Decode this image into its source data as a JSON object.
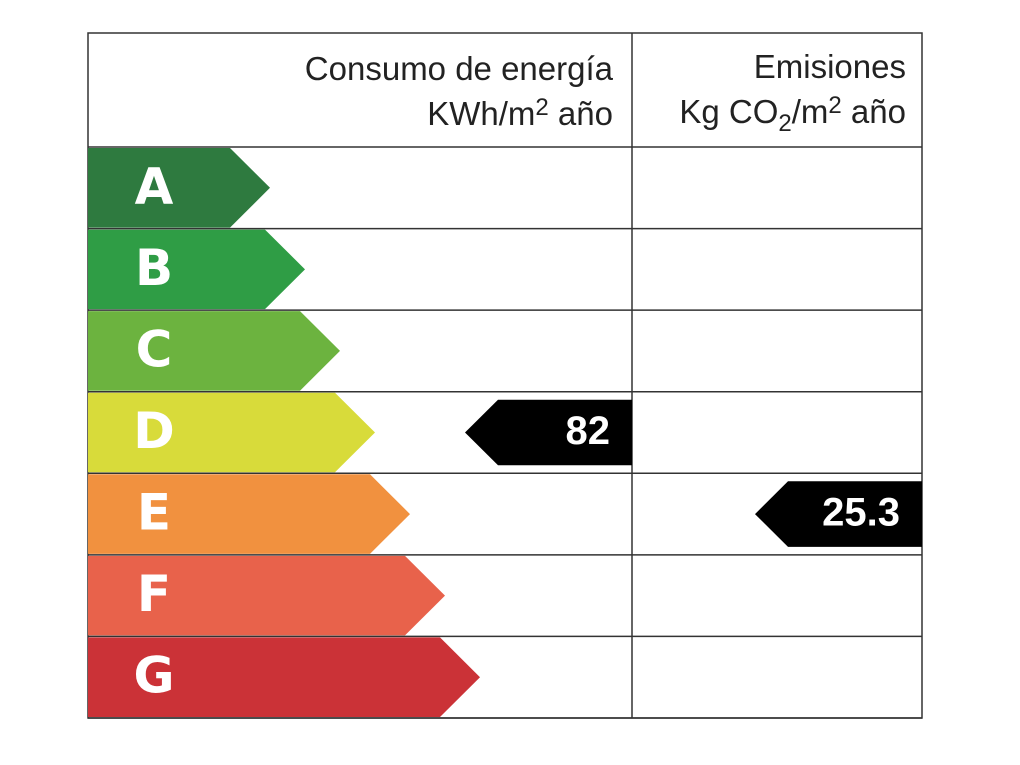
{
  "header": {
    "energy": {
      "title": "Consumo de energía",
      "unit": [
        "KWh/m",
        "2",
        " año"
      ]
    },
    "emissions": {
      "title": "Emisiones",
      "unit": [
        "Kg CO",
        "2",
        "/m",
        "2",
        " año"
      ]
    }
  },
  "classes": [
    {
      "letter": "A",
      "color": "#2e7a3f"
    },
    {
      "letter": "B",
      "color": "#2f9d45"
    },
    {
      "letter": "C",
      "color": "#6cb33f"
    },
    {
      "letter": "D",
      "color": "#d8db3a",
      "consumption": "82"
    },
    {
      "letter": "E",
      "color": "#f1913f",
      "emissions": "25.3"
    },
    {
      "letter": "F",
      "color": "#e8624b"
    },
    {
      "letter": "G",
      "color": "#cb3237"
    }
  ]
}
